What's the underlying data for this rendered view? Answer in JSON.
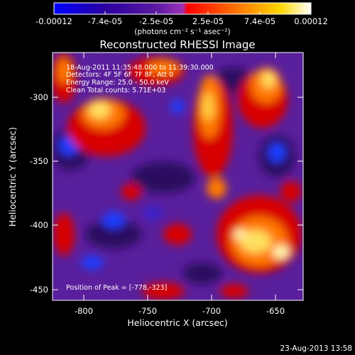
{
  "colorbar": {
    "tick_labels": [
      "-0.00012",
      "-7.4e-05",
      "-2.5e-05",
      "2.5e-05",
      "7.4e-05",
      "0.00012"
    ],
    "units": "(photons cm⁻² s⁻¹ asec⁻²)",
    "range": [
      -0.00012,
      0.00012
    ],
    "colormap": [
      "#0000ff",
      "#2b00a0",
      "#5a1aa0",
      "#9a32b8",
      "#ff0000",
      "#ff7a00",
      "#ffd700",
      "#ffffff"
    ]
  },
  "plot": {
    "title": "Reconstructed RHESSI Image",
    "xlabel": "Heliocentric X (arcsec)",
    "ylabel": "Heliocentric Y (arcsec)",
    "x_ticks": [
      "-800",
      "-750",
      "-700",
      "-650"
    ],
    "y_ticks": [
      "-300",
      "-350",
      "-400",
      "-450"
    ],
    "xlim": [
      -820,
      -625
    ],
    "ylim": [
      -460,
      -275
    ]
  },
  "overlay": {
    "line1": "18-Aug-2011 11:35:48.000 to 11:39:30.000",
    "line2": "Detectors: 4F 5F 6F 7F 8F, Att 0",
    "line3": "Energy Range: 25.0 - 50.0 keV",
    "line4": "Clean    Total counts: 5.71E+03",
    "peak": "Position of Peak = [-778,-323]"
  },
  "footer": {
    "timestamp": "23-Aug-2013 13:58"
  }
}
